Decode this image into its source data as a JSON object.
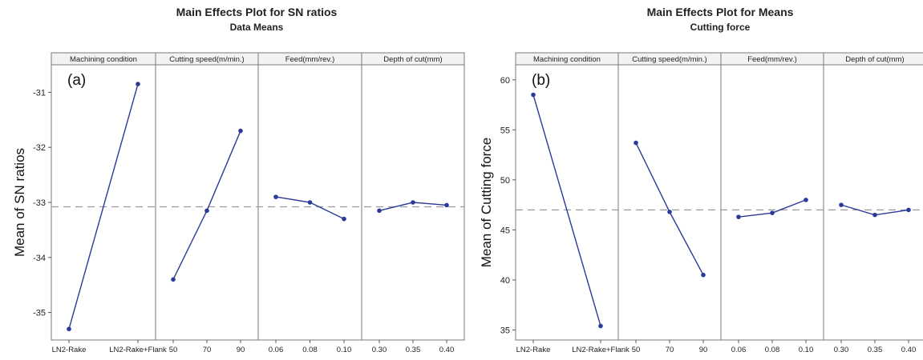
{
  "chart_data": [
    {
      "type": "line",
      "panel_label": "(a)",
      "title": "Main Effects Plot for SN ratios",
      "subtitle": "Data Means",
      "ylabel": "Mean of SN ratios",
      "ylim": [
        -35.5,
        -30.5
      ],
      "yticks": [
        -35,
        -34,
        -33,
        -32,
        -31
      ],
      "yticklabels": [
        "-35",
        "-34",
        "-33",
        "-32",
        "-31"
      ],
      "reference_line": -33.08,
      "series_color": "#2b3a9a",
      "panels": [
        {
          "title": "Machining condition",
          "categories": [
            "LN2-Rake",
            "LN2-Rake+Flank"
          ],
          "values": [
            -35.3,
            -30.85
          ]
        },
        {
          "title": "Cutting speed(m/min.)",
          "categories": [
            "50",
            "70",
            "90"
          ],
          "values": [
            -34.4,
            -33.15,
            -31.7
          ]
        },
        {
          "title": "Feed(mm/rev.)",
          "categories": [
            "0.06",
            "0.08",
            "0.10"
          ],
          "values": [
            -32.9,
            -33.0,
            -33.3
          ]
        },
        {
          "title": "Depth of cut(mm)",
          "categories": [
            "0.30",
            "0.35",
            "0.40"
          ],
          "values": [
            -33.15,
            -33.0,
            -33.05
          ]
        }
      ]
    },
    {
      "type": "line",
      "panel_label": "(b)",
      "title": "Main Effects Plot for Means",
      "subtitle": "Cutting force",
      "ylabel": "Mean of Cutting force",
      "ylim": [
        34,
        61.5
      ],
      "yticks": [
        35,
        40,
        45,
        50,
        55,
        60
      ],
      "yticklabels": [
        "35",
        "40",
        "45",
        "50",
        "55",
        "60"
      ],
      "reference_line": 47.0,
      "series_color": "#2b3a9a",
      "panels": [
        {
          "title": "Machining condition",
          "categories": [
            "LN2-Rake",
            "LN2-Rake+Flank"
          ],
          "values": [
            58.5,
            35.4
          ]
        },
        {
          "title": "Cutting speed(m/min.)",
          "categories": [
            "50",
            "70",
            "90"
          ],
          "values": [
            53.7,
            46.8,
            40.5
          ]
        },
        {
          "title": "Feed(mm/rev.)",
          "categories": [
            "0.06",
            "0.08",
            "0.10"
          ],
          "values": [
            46.3,
            46.7,
            48.0
          ]
        },
        {
          "title": "Depth of cut(mm)",
          "categories": [
            "0.30",
            "0.35",
            "0.40"
          ],
          "values": [
            47.5,
            46.5,
            47.0
          ]
        }
      ]
    }
  ]
}
